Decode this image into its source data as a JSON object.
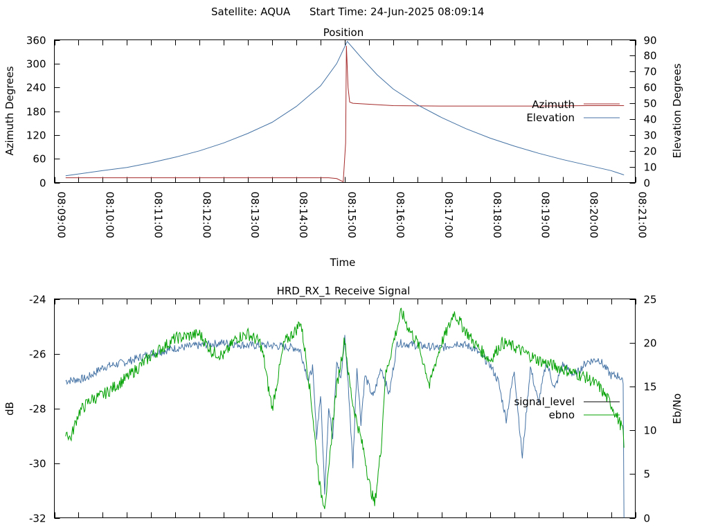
{
  "header": {
    "satellite": "Satellite: AQUA",
    "start_time": "Start Time: 24-Jun-2025 08:09:14"
  },
  "chart_data": [
    {
      "type": "line",
      "title": "Position",
      "xlabel": "Time",
      "ylabel": "Azimuth Degrees",
      "y2label": "Elevation Degrees",
      "xlim": [
        "08:09:00",
        "08:21:00"
      ],
      "ylim": [
        0,
        360
      ],
      "y2lim": [
        0,
        90
      ],
      "x_ticks": [
        "08:09:00",
        "08:10:00",
        "08:11:00",
        "08:12:00",
        "08:13:00",
        "08:14:00",
        "08:15:00",
        "08:16:00",
        "08:17:00",
        "08:18:00",
        "08:19:00",
        "08:20:00",
        "08:21:00"
      ],
      "y_ticks": [
        0,
        60,
        120,
        180,
        240,
        300,
        360
      ],
      "y2_ticks": [
        0,
        10,
        20,
        30,
        40,
        50,
        60,
        70,
        80,
        90
      ],
      "legend_position": "right",
      "series": [
        {
          "name": "Azimuth",
          "axis": "left",
          "color": "#a52a2a",
          "points": [
            [
              "08:09:14",
              12
            ],
            [
              "08:14:40",
              12
            ],
            [
              "08:14:50",
              10
            ],
            [
              "08:14:58",
              2
            ],
            [
              "08:15:01",
              100
            ],
            [
              "08:15:02",
              345
            ],
            [
              "08:15:04",
              240
            ],
            [
              "08:15:06",
              203
            ],
            [
              "08:15:10",
              200
            ],
            [
              "08:16:00",
              194
            ],
            [
              "08:17:00",
              193
            ],
            [
              "08:18:00",
              193
            ],
            [
              "08:19:00",
              193
            ],
            [
              "08:20:00",
              194
            ],
            [
              "08:20:46",
              194
            ]
          ]
        },
        {
          "name": "Elevation",
          "axis": "right",
          "color": "#4472a4",
          "points": [
            [
              "08:09:14",
              4.3
            ],
            [
              "08:10:00",
              7.5
            ],
            [
              "08:10:30",
              9.5
            ],
            [
              "08:11:00",
              12.5
            ],
            [
              "08:11:30",
              16
            ],
            [
              "08:12:00",
              20
            ],
            [
              "08:12:30",
              25
            ],
            [
              "08:13:00",
              31
            ],
            [
              "08:13:30",
              38
            ],
            [
              "08:14:00",
              48
            ],
            [
              "08:14:30",
              61
            ],
            [
              "08:14:50",
              75
            ],
            [
              "08:15:03",
              89
            ],
            [
              "08:15:20",
              79
            ],
            [
              "08:15:40",
              68
            ],
            [
              "08:16:00",
              59
            ],
            [
              "08:16:30",
              49
            ],
            [
              "08:17:00",
              41
            ],
            [
              "08:17:30",
              34
            ],
            [
              "08:18:00",
              28
            ],
            [
              "08:18:30",
              23
            ],
            [
              "08:19:00",
              18.5
            ],
            [
              "08:19:30",
              14.5
            ],
            [
              "08:20:00",
              11
            ],
            [
              "08:20:30",
              7.5
            ],
            [
              "08:20:46",
              4.8
            ]
          ]
        }
      ]
    },
    {
      "type": "line",
      "title": "HRD_RX_1 Receive Signal",
      "ylabel": "dB",
      "y2label": "Eb/No",
      "xlim": [
        "08:09:00",
        "08:21:00"
      ],
      "ylim": [
        -32,
        -24
      ],
      "y2lim": [
        0,
        25
      ],
      "y_ticks": [
        -32,
        -30,
        -28,
        -26,
        -24
      ],
      "y2_ticks": [
        0,
        5,
        10,
        15,
        20,
        25
      ],
      "legend_position": "right",
      "series": [
        {
          "name": "signal_level",
          "axis": "left",
          "color": "#4472a4",
          "noise": 0.15,
          "points": [
            [
              "08:09:14",
              -27
            ],
            [
              "08:09:40",
              -26.9
            ],
            [
              "08:10:00",
              -26.5
            ],
            [
              "08:10:30",
              -26.3
            ],
            [
              "08:11:00",
              -26
            ],
            [
              "08:11:30",
              -25.8
            ],
            [
              "08:12:00",
              -25.7
            ],
            [
              "08:12:30",
              -25.6
            ],
            [
              "08:13:00",
              -25.7
            ],
            [
              "08:13:30",
              -25.7
            ],
            [
              "08:14:00",
              -25.8
            ],
            [
              "08:14:05",
              -25.9
            ],
            [
              "08:14:15",
              -27
            ],
            [
              "08:14:20",
              -26.5
            ],
            [
              "08:14:25",
              -29
            ],
            [
              "08:14:30",
              -27.5
            ],
            [
              "08:14:35",
              -31
            ],
            [
              "08:14:40",
              -28
            ],
            [
              "08:14:45",
              -29
            ],
            [
              "08:14:50",
              -26.2
            ],
            [
              "08:14:55",
              -27
            ],
            [
              "08:15:00",
              -25.4
            ],
            [
              "08:15:05",
              -27.5
            ],
            [
              "08:15:10",
              -30.1
            ],
            [
              "08:15:15",
              -26.5
            ],
            [
              "08:15:20",
              -28.5
            ],
            [
              "08:15:25",
              -26.8
            ],
            [
              "08:15:35",
              -27.6
            ],
            [
              "08:15:45",
              -26.5
            ],
            [
              "08:15:55",
              -27.5
            ],
            [
              "08:16:05",
              -25.6
            ],
            [
              "08:16:30",
              -25.7
            ],
            [
              "08:17:00",
              -25.8
            ],
            [
              "08:17:20",
              -25.6
            ],
            [
              "08:17:40",
              -25.8
            ],
            [
              "08:18:00",
              -26.4
            ],
            [
              "08:18:10",
              -27
            ],
            [
              "08:18:20",
              -28.4
            ],
            [
              "08:18:30",
              -26.6
            ],
            [
              "08:18:40",
              -29.8
            ],
            [
              "08:18:50",
              -26.5
            ],
            [
              "08:19:00",
              -27.8
            ],
            [
              "08:19:10",
              -26.3
            ],
            [
              "08:19:20",
              -27.3
            ],
            [
              "08:19:30",
              -26.4
            ],
            [
              "08:19:45",
              -26.8
            ],
            [
              "08:20:00",
              -26.3
            ],
            [
              "08:20:15",
              -26.2
            ],
            [
              "08:20:30",
              -26.8
            ],
            [
              "08:20:40",
              -26.8
            ],
            [
              "08:20:45",
              -27.1
            ],
            [
              "08:20:46",
              -32
            ]
          ]
        },
        {
          "name": "ebno",
          "axis": "right",
          "color": "#00a000",
          "noise": 0.7,
          "points": [
            [
              "08:09:14",
              10
            ],
            [
              "08:09:20",
              9
            ],
            [
              "08:09:30",
              12
            ],
            [
              "08:09:45",
              13.5
            ],
            [
              "08:10:00",
              14
            ],
            [
              "08:10:30",
              16
            ],
            [
              "08:11:00",
              18.5
            ],
            [
              "08:11:30",
              20.5
            ],
            [
              "08:12:00",
              21
            ],
            [
              "08:12:15",
              19
            ],
            [
              "08:12:30",
              18.5
            ],
            [
              "08:12:45",
              20.5
            ],
            [
              "08:13:00",
              21
            ],
            [
              "08:13:15",
              20
            ],
            [
              "08:13:20",
              18
            ],
            [
              "08:13:25",
              15
            ],
            [
              "08:13:30",
              12.5
            ],
            [
              "08:13:35",
              15
            ],
            [
              "08:13:45",
              20
            ],
            [
              "08:14:00",
              21.5
            ],
            [
              "08:14:05",
              22.5
            ],
            [
              "08:14:10",
              19.5
            ],
            [
              "08:14:15",
              16
            ],
            [
              "08:14:20",
              12
            ],
            [
              "08:14:25",
              7
            ],
            [
              "08:14:30",
              3
            ],
            [
              "08:14:35",
              1.5
            ],
            [
              "08:14:40",
              5
            ],
            [
              "08:14:45",
              11
            ],
            [
              "08:14:50",
              15
            ],
            [
              "08:15:00",
              20.5
            ],
            [
              "08:15:05",
              16
            ],
            [
              "08:15:10",
              13
            ],
            [
              "08:15:15",
              11
            ],
            [
              "08:15:20",
              9
            ],
            [
              "08:15:25",
              7
            ],
            [
              "08:15:30",
              4
            ],
            [
              "08:15:37",
              1.5
            ],
            [
              "08:15:45",
              8
            ],
            [
              "08:15:50",
              16
            ],
            [
              "08:16:00",
              20
            ],
            [
              "08:16:10",
              23.5
            ],
            [
              "08:16:20",
              21.5
            ],
            [
              "08:16:30",
              20
            ],
            [
              "08:16:40",
              17
            ],
            [
              "08:16:45",
              15
            ],
            [
              "08:16:50",
              17
            ],
            [
              "08:17:00",
              20
            ],
            [
              "08:17:10",
              22
            ],
            [
              "08:17:15",
              23.5
            ],
            [
              "08:17:25",
              22
            ],
            [
              "08:17:40",
              20
            ],
            [
              "08:18:00",
              18
            ],
            [
              "08:18:15",
              20
            ],
            [
              "08:18:30",
              19.5
            ],
            [
              "08:19:00",
              18
            ],
            [
              "08:19:30",
              17
            ],
            [
              "08:20:00",
              16
            ],
            [
              "08:20:15",
              15
            ],
            [
              "08:20:30",
              13
            ],
            [
              "08:20:45",
              10
            ],
            [
              "08:20:46",
              8
            ]
          ]
        }
      ]
    }
  ]
}
